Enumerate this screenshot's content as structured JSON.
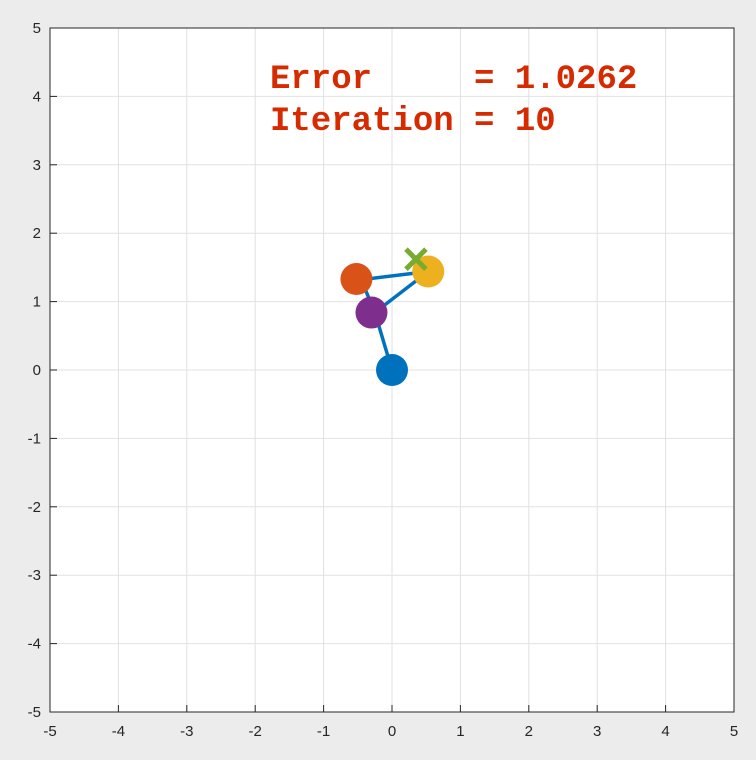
{
  "chart_data": {
    "type": "scatter",
    "xlim": [
      -5,
      5
    ],
    "ylim": [
      -5,
      5
    ],
    "grid": true,
    "x_ticks": [
      "-5",
      "-4",
      "-3",
      "-2",
      "-1",
      "0",
      "1",
      "2",
      "3",
      "4",
      "5"
    ],
    "y_ticks": [
      "5",
      "4",
      "3",
      "2",
      "1",
      "0",
      "-1",
      "-2",
      "-3",
      "-4",
      "-5"
    ],
    "annotation": {
      "error_line": "Error     = 1.0262",
      "iteration_line": "Iteration = 10"
    },
    "target": {
      "x": 0.35,
      "y": 1.62,
      "marker": "x",
      "color": "#77ac30"
    },
    "joints": [
      {
        "x": 0.0,
        "y": 0.0,
        "color": "#0072bd"
      },
      {
        "x": -0.52,
        "y": 1.33,
        "color": "#d95319"
      },
      {
        "x": 0.53,
        "y": 1.44,
        "color": "#edb120"
      },
      {
        "x": -0.3,
        "y": 0.84,
        "color": "#7e2f8e"
      }
    ],
    "arm_segments": [
      {
        "x": [
          0.0,
          -0.25
        ],
        "y": [
          0.0,
          0.84
        ]
      },
      {
        "x": [
          -0.25,
          -0.45
        ],
        "y": [
          0.84,
          1.32
        ]
      },
      {
        "x": [
          -0.45,
          0.53
        ],
        "y": [
          1.32,
          1.44
        ]
      },
      {
        "x": [
          0.53,
          -0.25
        ],
        "y": [
          1.44,
          0.84
        ]
      }
    ],
    "arm_color": "#0072bd"
  }
}
